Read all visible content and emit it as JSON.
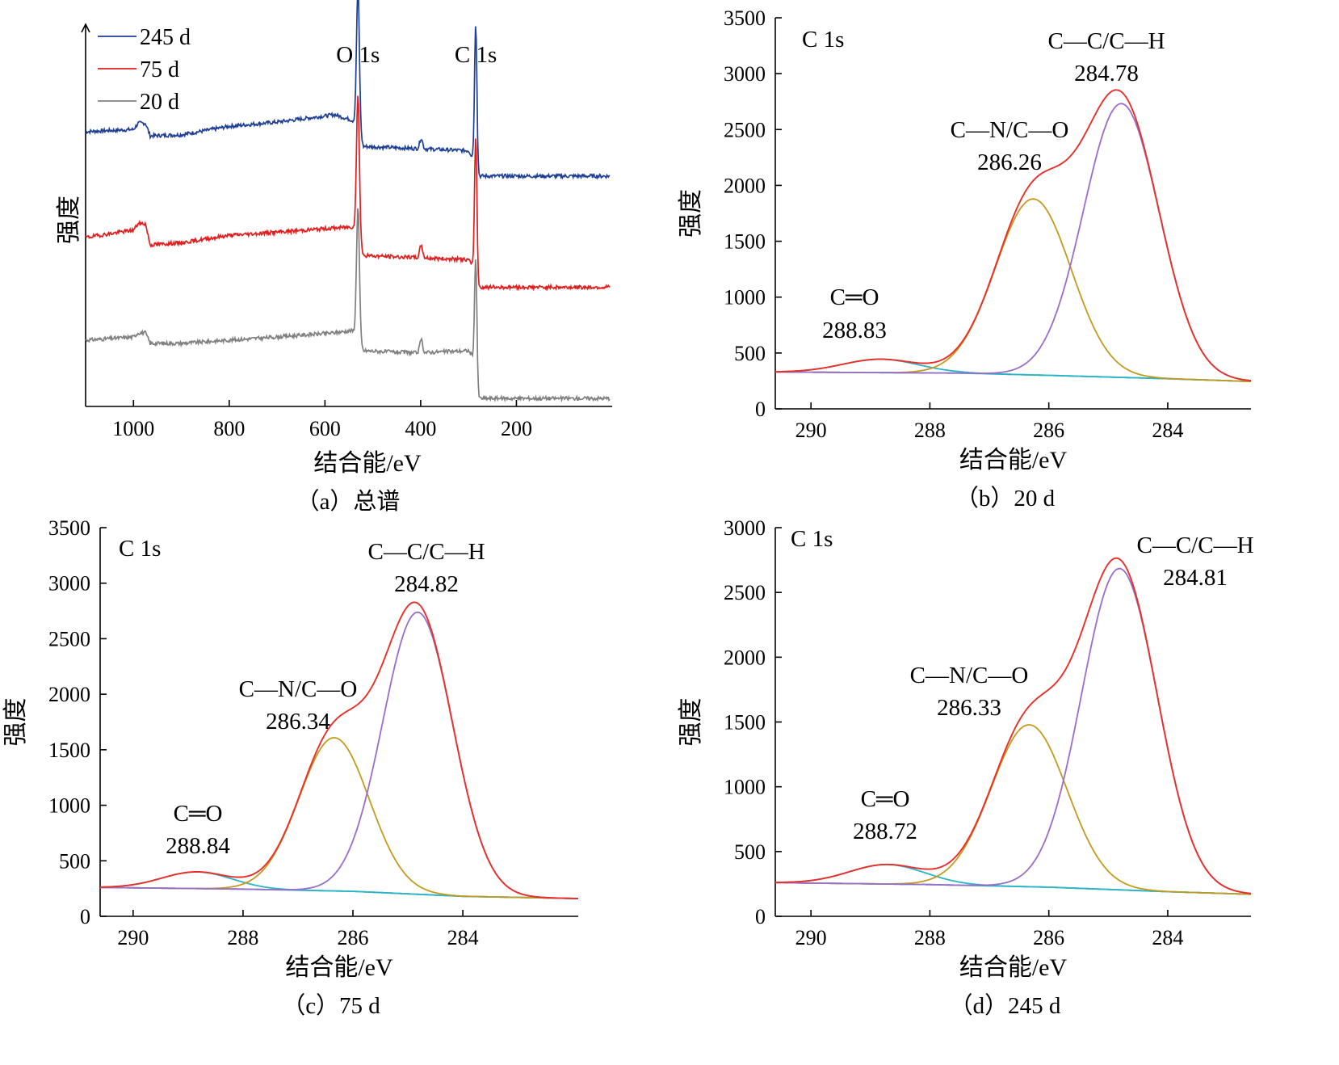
{
  "chart_data": [
    {
      "id": "a",
      "type": "line",
      "caption": "（a）总谱",
      "xlabel": "结合能/eV",
      "ylabel": "强度",
      "xlim": [
        1100,
        0
      ],
      "x_ticks": [
        1000,
        800,
        600,
        400,
        200
      ],
      "y_ticks": [],
      "grid": false,
      "legend": {
        "position": "top-left"
      },
      "peak_labels": [
        {
          "text": "O 1s",
          "x": 531
        },
        {
          "text": "C 1s",
          "x": 285
        }
      ],
      "series": [
        {
          "name": "245 d",
          "color": "#1f3f96",
          "offset": 2.1,
          "noise_seed": 7,
          "points": [
            [
              1100,
              0.42
            ],
            [
              1000,
              0.44
            ],
            [
              990,
              0.5
            ],
            [
              975,
              0.5
            ],
            [
              965,
              0.38
            ],
            [
              900,
              0.39
            ],
            [
              800,
              0.47
            ],
            [
              700,
              0.51
            ],
            [
              580,
              0.58
            ],
            [
              545,
              0.53
            ],
            [
              533,
              0.5
            ],
            [
              520,
              0.28
            ],
            [
              410,
              0.26
            ],
            [
              300,
              0.24
            ],
            [
              292,
              0.18
            ],
            [
              284,
              0.0
            ],
            [
              270,
              0.0
            ],
            [
              0,
              0.0
            ]
          ],
          "peaks": [
            [
              531,
              1.32,
              3
            ],
            [
              399,
              0.1,
              3
            ],
            [
              285,
              1.42,
              2.5
            ]
          ]
        },
        {
          "name": "75 d",
          "color": "#e01e1e",
          "offset": 1.05,
          "noise_seed": 19,
          "points": [
            [
              1100,
              0.47
            ],
            [
              1000,
              0.54
            ],
            [
              990,
              0.6
            ],
            [
              975,
              0.6
            ],
            [
              965,
              0.4
            ],
            [
              900,
              0.42
            ],
            [
              800,
              0.49
            ],
            [
              700,
              0.52
            ],
            [
              580,
              0.56
            ],
            [
              545,
              0.57
            ],
            [
              533,
              0.56
            ],
            [
              520,
              0.3
            ],
            [
              410,
              0.28
            ],
            [
              300,
              0.26
            ],
            [
              292,
              0.2
            ],
            [
              284,
              0.0
            ],
            [
              270,
              0.0
            ],
            [
              0,
              0.0
            ]
          ],
          "peaks": [
            [
              531,
              1.3,
              3
            ],
            [
              399,
              0.12,
              3
            ],
            [
              285,
              1.41,
              2.5
            ]
          ]
        },
        {
          "name": "20 d",
          "color": "#808080",
          "offset": 0.0,
          "noise_seed": 31,
          "points": [
            [
              1100,
              0.55
            ],
            [
              1000,
              0.58
            ],
            [
              990,
              0.62
            ],
            [
              975,
              0.62
            ],
            [
              965,
              0.52
            ],
            [
              900,
              0.52
            ],
            [
              800,
              0.55
            ],
            [
              700,
              0.58
            ],
            [
              580,
              0.62
            ],
            [
              545,
              0.64
            ],
            [
              533,
              0.62
            ],
            [
              520,
              0.45
            ],
            [
              410,
              0.43
            ],
            [
              300,
              0.45
            ],
            [
              292,
              0.4
            ],
            [
              284,
              0.0
            ],
            [
              270,
              0.0
            ],
            [
              0,
              0.0
            ]
          ],
          "peaks": [
            [
              531,
              1.22,
              3
            ],
            [
              399,
              0.12,
              3
            ],
            [
              285,
              1.28,
              2.5
            ]
          ]
        }
      ]
    },
    {
      "id": "b",
      "type": "line",
      "caption": "（b）20 d",
      "xlabel": "结合能/eV",
      "ylabel": "强度",
      "xlim": [
        290.6,
        282.6
      ],
      "ylim": [
        0,
        3500
      ],
      "x_ticks": [
        290,
        288,
        286,
        284
      ],
      "y_ticks": [
        0,
        500,
        1000,
        1500,
        2000,
        2500,
        3000,
        3500
      ],
      "grid": false,
      "spectrum_label": "C 1s",
      "background": [
        [
          290.6,
          330
        ],
        [
          287.5,
          320
        ],
        [
          286,
          300
        ],
        [
          284,
          270
        ],
        [
          282.6,
          245
        ]
      ],
      "components": [
        {
          "assignment": "C—C/C—H",
          "center": 284.78,
          "amplitude": 2450,
          "fwhm": 1.5,
          "color": "#9a6dc8"
        },
        {
          "assignment": "C—N/C—O",
          "center": 286.26,
          "amplitude": 1575,
          "fwhm": 1.5,
          "color": "#c49a1c"
        },
        {
          "assignment": "C═O",
          "center": 288.83,
          "amplitude": 120,
          "fwhm": 1.5,
          "color": "#2bb3c6"
        }
      ],
      "envelope_color": "#e8302a",
      "baseline_color": "#2bb3c6",
      "annotations": [
        {
          "line1": "C—C/C—H",
          "line2": "284.78"
        },
        {
          "line1": "C—N/C—O",
          "line2": "286.26"
        },
        {
          "line1": "C═O",
          "line2": "288.83"
        }
      ]
    },
    {
      "id": "c",
      "type": "line",
      "caption": "（c）75 d",
      "xlabel": "结合能/eV",
      "ylabel": "强度",
      "xlim": [
        290.6,
        281.9
      ],
      "ylim": [
        0,
        3500
      ],
      "x_ticks": [
        290,
        288,
        286,
        284
      ],
      "y_ticks": [
        0,
        500,
        1000,
        1500,
        2000,
        2500,
        3000,
        3500
      ],
      "grid": false,
      "spectrum_label": "C 1s",
      "background": [
        [
          290.6,
          260
        ],
        [
          288,
          245
        ],
        [
          286,
          225
        ],
        [
          284,
          180
        ],
        [
          281.9,
          160
        ]
      ],
      "components": [
        {
          "assignment": "C—C/C—H",
          "center": 284.82,
          "amplitude": 2540,
          "fwhm": 1.5,
          "color": "#9a6dc8"
        },
        {
          "assignment": "C—N/C—O",
          "center": 286.34,
          "amplitude": 1380,
          "fwhm": 1.5,
          "color": "#c49a1c"
        },
        {
          "assignment": "C═O",
          "center": 288.84,
          "amplitude": 150,
          "fwhm": 1.5,
          "color": "#2bb3c6"
        }
      ],
      "envelope_color": "#e8302a",
      "baseline_color": "#2bb3c6",
      "annotations": [
        {
          "line1": "C—C/C—H",
          "line2": "284.82"
        },
        {
          "line1": "C—N/C—O",
          "line2": "286.34"
        },
        {
          "line1": "C═O",
          "line2": "288.84"
        }
      ]
    },
    {
      "id": "d",
      "type": "line",
      "caption": "（d）245 d",
      "xlabel": "结合能/eV",
      "ylabel": "强度",
      "xlim": [
        290.6,
        282.6
      ],
      "ylim": [
        0,
        3000
      ],
      "x_ticks": [
        290,
        288,
        286,
        284
      ],
      "y_ticks": [
        0,
        500,
        1000,
        1500,
        2000,
        2500,
        3000
      ],
      "grid": false,
      "spectrum_label": "C 1s",
      "background": [
        [
          290.6,
          260
        ],
        [
          288,
          245
        ],
        [
          286,
          225
        ],
        [
          284,
          190
        ],
        [
          282.6,
          170
        ]
      ],
      "components": [
        {
          "assignment": "C—C/C—H",
          "center": 284.81,
          "amplitude": 2480,
          "fwhm": 1.5,
          "color": "#9a6dc8"
        },
        {
          "assignment": "C—N/C—O",
          "center": 286.33,
          "amplitude": 1250,
          "fwhm": 1.5,
          "color": "#c49a1c"
        },
        {
          "assignment": "C═O",
          "center": 288.72,
          "amplitude": 150,
          "fwhm": 1.5,
          "color": "#2bb3c6"
        }
      ],
      "envelope_color": "#e8302a",
      "baseline_color": "#2bb3c6",
      "annotations": [
        {
          "line1": "C—C/C—H",
          "line2": "284.81"
        },
        {
          "line1": "C—N/C—O",
          "line2": "286.33"
        },
        {
          "line1": "C═O",
          "line2": "288.72"
        }
      ]
    }
  ]
}
